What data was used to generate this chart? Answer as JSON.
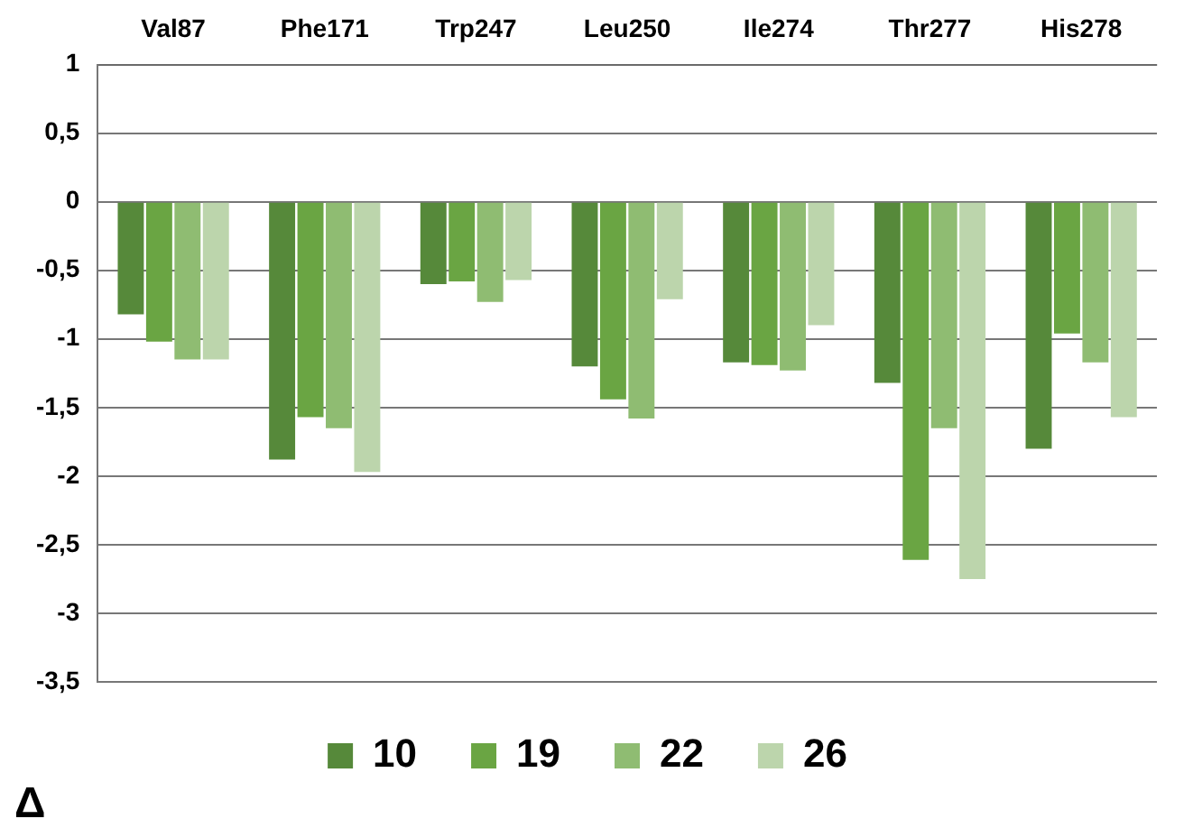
{
  "chart_data": {
    "type": "bar",
    "categories": [
      "Val87",
      "Phe171",
      "Trp247",
      "Leu250",
      "Ile274",
      "Thr277",
      "His278"
    ],
    "series": [
      {
        "name": "10",
        "color": "#56893a",
        "values": [
          -0.82,
          -1.88,
          -0.6,
          -1.2,
          -1.17,
          -1.32,
          -1.8
        ]
      },
      {
        "name": "19",
        "color": "#6aa543",
        "values": [
          -1.02,
          -1.57,
          -0.58,
          -1.44,
          -1.19,
          -2.61,
          -0.96
        ]
      },
      {
        "name": "22",
        "color": "#8fbc72",
        "values": [
          -1.15,
          -1.65,
          -0.73,
          -1.58,
          -1.23,
          -1.65,
          -1.17
        ]
      },
      {
        "name": "26",
        "color": "#bcd5ac",
        "values": [
          -1.15,
          -1.97,
          -0.57,
          -0.71,
          -0.9,
          -2.75,
          -1.57
        ]
      }
    ],
    "ylim": [
      -3.5,
      1
    ],
    "yticks": [
      {
        "value": -3.5,
        "label": "-3,5"
      },
      {
        "value": -3,
        "label": "-3"
      },
      {
        "value": -2.5,
        "label": "-2,5"
      },
      {
        "value": -2,
        "label": "-2"
      },
      {
        "value": -1.5,
        "label": "-1,5"
      },
      {
        "value": -1,
        "label": "-1"
      },
      {
        "value": -0.5,
        "label": "-0,5"
      },
      {
        "value": 0,
        "label": "0"
      },
      {
        "value": 0.5,
        "label": "0,5"
      },
      {
        "value": 1,
        "label": "1"
      }
    ],
    "grid": "y",
    "legend": "bottom",
    "annotations": [
      "Δ"
    ]
  }
}
